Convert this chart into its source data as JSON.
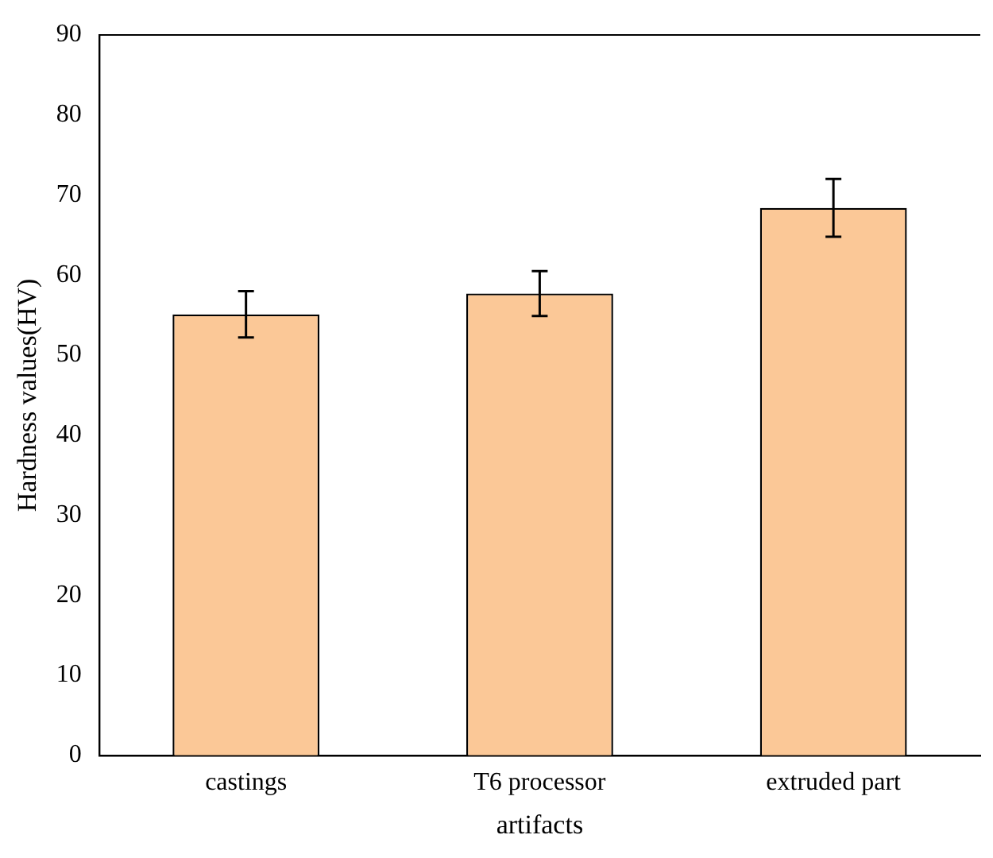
{
  "chart_data": {
    "type": "bar",
    "xlabel": "artifacts",
    "ylabel": "Hardness values(HV)",
    "categories": [
      "castings",
      "T6 processor",
      "extruded part"
    ],
    "values": [
      55.1,
      57.7,
      68.4
    ],
    "errors": [
      2.9,
      2.8,
      3.6
    ],
    "color": "#fbc897",
    "ylim": [
      0,
      90
    ],
    "yticks": [
      0,
      10,
      20,
      30,
      40,
      50,
      60,
      70,
      80,
      90
    ],
    "grid": false
  }
}
